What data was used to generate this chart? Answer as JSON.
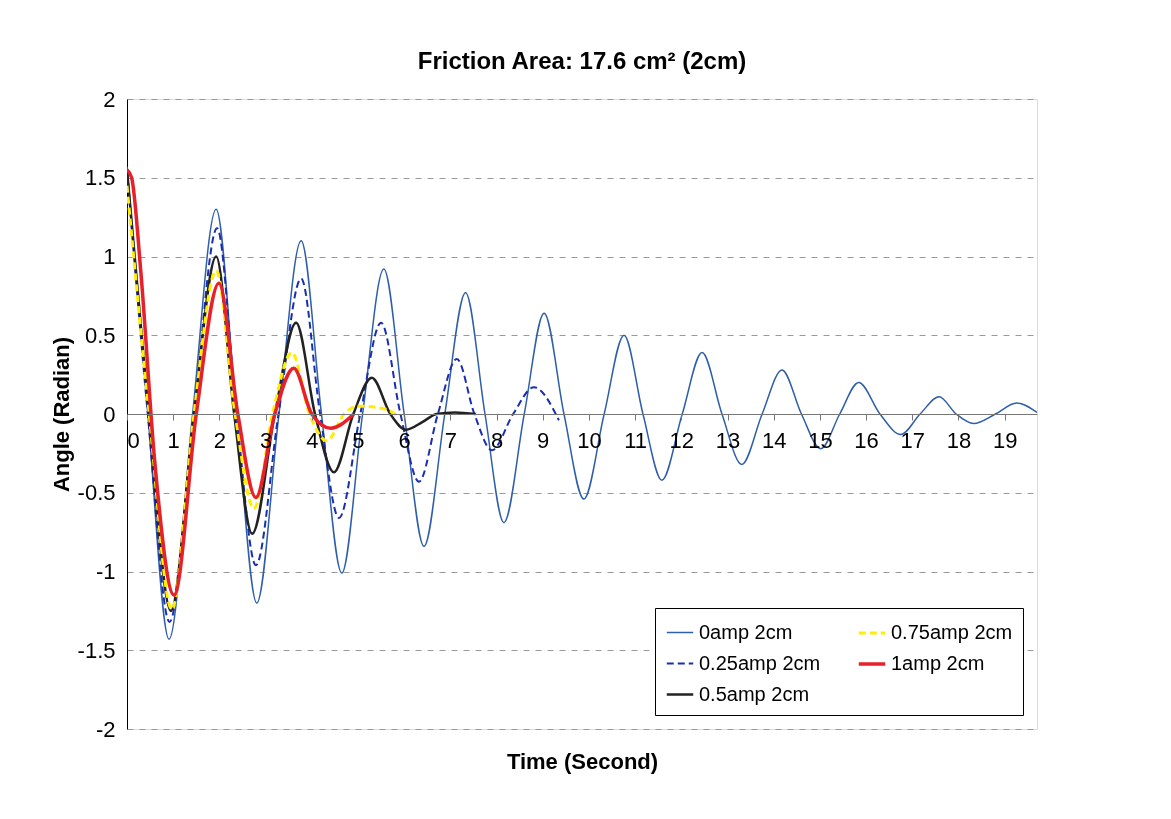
{
  "chart_data": {
    "type": "line",
    "title": "Friction Area: 17.6 cm² (2cm)",
    "xlabel": "Time (Second)",
    "ylabel": "Angle (Radian)",
    "xlim": [
      0,
      19.7
    ],
    "xticks": [
      0,
      1,
      2,
      3,
      4,
      5,
      6,
      7,
      8,
      9,
      10,
      11,
      12,
      13,
      14,
      15,
      16,
      17,
      18,
      19
    ],
    "ylim": [
      -2,
      2
    ],
    "yticks": [
      -2,
      -1.5,
      -1,
      -0.5,
      0,
      0.5,
      1,
      1.5,
      2
    ],
    "grid": "y",
    "legend": "bottom right",
    "marker": "none",
    "series": [
      {
        "name": "0amp 2cm",
        "color": "#2e5fa8",
        "line_style": "solid",
        "x": [
          0,
          0.45,
          0.91,
          1.42,
          1.93,
          2.37,
          2.81,
          3.29,
          3.77,
          4.21,
          4.65,
          5.1,
          5.56,
          6.0,
          6.43,
          6.88,
          7.33,
          7.75,
          8.16,
          8.6,
          9.03,
          9.46,
          9.89,
          10.33,
          10.76,
          11.17,
          11.58,
          12.02,
          12.45,
          12.88,
          13.31,
          13.75,
          14.18,
          14.6,
          15.02,
          15.43,
          15.84,
          16.3,
          16.75,
          17.17,
          17.58,
          17.95,
          18.33,
          18.8,
          19.26,
          19.7
        ],
        "values": [
          1.57,
          0,
          -1.43,
          0,
          1.3,
          0,
          -1.2,
          0,
          1.1,
          0,
          -1.01,
          0,
          0.92,
          0,
          -0.84,
          0,
          0.77,
          0,
          -0.69,
          0,
          0.64,
          0,
          -0.54,
          0,
          0.5,
          0,
          -0.42,
          0,
          0.39,
          0,
          -0.32,
          0,
          0.28,
          0,
          -0.22,
          0,
          0.2,
          0,
          -0.13,
          0,
          0.11,
          0,
          -0.06,
          0,
          0.07,
          0.01
        ]
      },
      {
        "name": "0.25amp 2cm",
        "color": "#1a2fb0",
        "line_style": "dashed",
        "x": [
          0,
          0.45,
          0.92,
          1.45,
          1.95,
          2.37,
          2.79,
          3.28,
          3.77,
          4.18,
          4.59,
          5.05,
          5.5,
          5.92,
          6.32,
          6.73,
          7.14,
          7.52,
          7.9,
          8.36,
          8.81,
          9.35
        ],
        "values": [
          1.55,
          0,
          -1.32,
          0,
          1.18,
          0,
          -0.96,
          0,
          0.86,
          0,
          -0.66,
          0,
          0.58,
          0,
          -0.43,
          0,
          0.35,
          0,
          -0.23,
          0,
          0.17,
          -0.04
        ]
      },
      {
        "name": "0.5amp 2cm",
        "color": "#222222",
        "line_style": "solid",
        "x": [
          0,
          0.47,
          0.95,
          1.45,
          1.93,
          2.32,
          2.71,
          3.2,
          3.66,
          4.07,
          4.48,
          4.9,
          5.3,
          5.7,
          6.04,
          6.4,
          6.7,
          7.1,
          7.55
        ],
        "values": [
          1.55,
          0,
          -1.25,
          0,
          1.0,
          0,
          -0.76,
          0,
          0.58,
          0,
          -0.37,
          0,
          0.23,
          0,
          -0.1,
          -0.05,
          0,
          0.01,
          0.0
        ]
      },
      {
        "name": "0.75amp 2cm",
        "color": "#ffee00",
        "line_style": "dashed",
        "x": [
          0,
          0.48,
          0.97,
          1.45,
          1.93,
          2.34,
          2.75,
          3.15,
          3.57,
          3.95,
          4.33,
          4.7,
          5.02,
          5.6,
          5.89
        ],
        "values": [
          1.45,
          0,
          -1.24,
          0,
          0.91,
          0,
          -0.6,
          0,
          0.39,
          0,
          -0.17,
          0,
          0.05,
          0.03,
          -0.02
        ]
      },
      {
        "name": "1amp 2cm",
        "color": "#e8202a",
        "line_style": "solid",
        "x": [
          0,
          0.1,
          0.3,
          0.6,
          1.02,
          1.5,
          1.99,
          2.4,
          2.79,
          3.2,
          3.61,
          4.0,
          4.41,
          4.91
        ],
        "values": [
          1.55,
          1.5,
          0.9,
          -0.3,
          -1.15,
          0,
          0.83,
          0,
          -0.53,
          0,
          0.29,
          0,
          -0.09,
          0.0
        ]
      }
    ]
  }
}
